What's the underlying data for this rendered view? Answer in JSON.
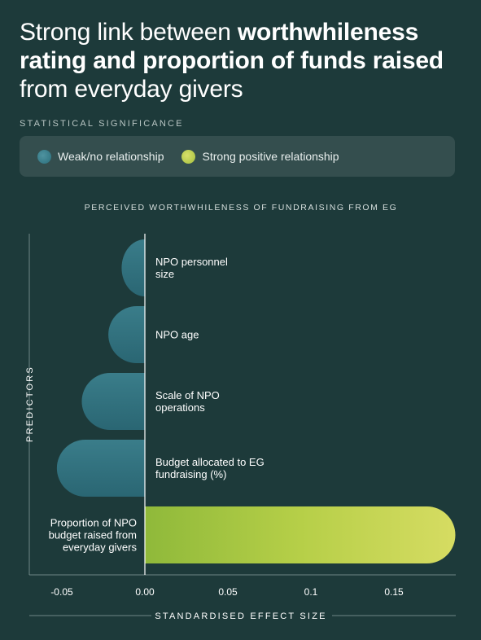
{
  "title": {
    "part1": "Strong link between ",
    "part2_bold": "worthwhileness rating and proportion of funds raised",
    "part3": " from everyday givers"
  },
  "section_label": "STATISTICAL SIGNIFICANCE",
  "legend": {
    "weak_label": "Weak/no relationship",
    "strong_label": "Strong positive relationship"
  },
  "colors": {
    "background": "#1d3a3a",
    "weak": "#2e6e7b",
    "strong": "#c9d74f"
  },
  "chart_data": {
    "type": "bar",
    "orientation": "horizontal",
    "title": "PERCEIVED WORTHWHILENESS OF FUNDRAISING FROM EG",
    "xlabel": "STANDARDISED EFFECT SIZE",
    "ylabel": "PREDICTORS",
    "xlim": [
      -0.07,
      0.19
    ],
    "xticks": [
      -0.05,
      0.0,
      0.05,
      0.1,
      0.15
    ],
    "xtick_labels": [
      "-0.05",
      "0.00",
      "0.05",
      "0.1",
      "0.15"
    ],
    "categories": [
      [
        "NPO personnel",
        "size"
      ],
      [
        "NPO age"
      ],
      [
        "Scale of NPO",
        "operations"
      ],
      [
        "Budget allocated to EG",
        "fundraising (%)"
      ],
      [
        "Proportion of NPO",
        "budget raised from",
        "everyday givers"
      ]
    ],
    "values": [
      -0.014,
      -0.022,
      -0.038,
      -0.053,
      0.187
    ],
    "significance": [
      "weak",
      "weak",
      "weak",
      "weak",
      "strong"
    ]
  }
}
